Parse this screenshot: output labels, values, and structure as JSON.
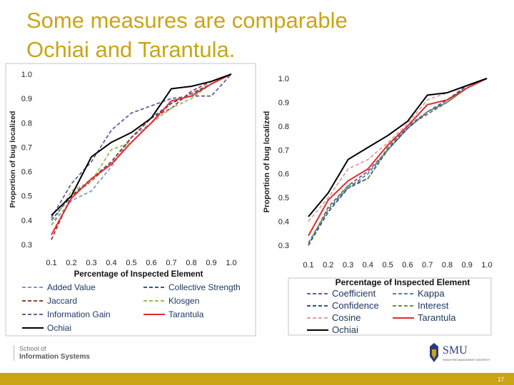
{
  "slide": {
    "title_line1": "Some measures are comparable",
    "title_line2": "Ochiai and Tarantula.",
    "school_line1": "School of",
    "school_line2": "Information Systems",
    "logo_text": "SMU",
    "logo_subtext": "SINGAPORE MANAGEMENT UNIVERSITY",
    "page_number": "17",
    "accent_color": "#c9a516"
  },
  "chart_data": [
    {
      "type": "line",
      "xlabel": "Percentage of Inspected Element",
      "ylabel": "Proportion of bug localized",
      "x": [
        "0.1",
        "0.2",
        "0.3",
        "0.4",
        "0.5",
        "0.6",
        "0.7",
        "0.8",
        "0.9",
        "1.0"
      ],
      "yticks": [
        "0.3",
        "0.4",
        "0.5",
        "0.6",
        "0.7",
        "0.8",
        "0.9",
        "1.0"
      ],
      "ylim": [
        0.3,
        1.0
      ],
      "grid": false,
      "legend_position": "bottom",
      "series": [
        {
          "name": "Added Value",
          "color": "#7f9cc8",
          "dash": "dash",
          "values": [
            0.38,
            0.48,
            0.52,
            0.62,
            0.74,
            0.8,
            0.88,
            0.92,
            0.96,
            1.0
          ]
        },
        {
          "name": "Collective Strength",
          "color": "#2f5597",
          "dash": "dash",
          "values": [
            0.4,
            0.5,
            0.57,
            0.64,
            0.74,
            0.82,
            0.88,
            0.92,
            0.96,
            1.0
          ]
        },
        {
          "name": "Jaccard",
          "color": "#9e3a3a",
          "dash": "dash",
          "values": [
            0.32,
            0.5,
            0.56,
            0.64,
            0.74,
            0.82,
            0.86,
            0.93,
            0.97,
            1.0
          ]
        },
        {
          "name": "Klosgen",
          "color": "#9bbb59",
          "dash": "dash",
          "values": [
            0.38,
            0.52,
            0.56,
            0.69,
            0.72,
            0.8,
            0.86,
            0.9,
            0.96,
            1.0
          ]
        },
        {
          "name": "Information Gain",
          "color": "#6a5aa0",
          "dash": "dash",
          "values": [
            0.41,
            0.55,
            0.64,
            0.77,
            0.84,
            0.87,
            0.9,
            0.91,
            0.91,
            1.0
          ]
        },
        {
          "name": "Tarantula",
          "color": "#e52a2a",
          "dash": "solid",
          "values": [
            0.34,
            0.49,
            0.57,
            0.63,
            0.72,
            0.8,
            0.89,
            0.91,
            0.96,
            1.0
          ]
        },
        {
          "name": "Ochiai",
          "color": "#000000",
          "dash": "solid",
          "values": [
            0.42,
            0.5,
            0.66,
            0.72,
            0.76,
            0.82,
            0.94,
            0.95,
            0.97,
            1.0
          ]
        }
      ]
    },
    {
      "type": "line",
      "xlabel": "Percentage of Inspected Element",
      "ylabel": "Proportion of bug localized",
      "x": [
        "0.1",
        "0.2",
        "0.3",
        "0.4",
        "0.5",
        "0.6",
        "0.7",
        "0.8",
        "0.9",
        "1.0"
      ],
      "yticks": [
        "0.3",
        "0.4",
        "0.5",
        "0.6",
        "0.7",
        "0.8",
        "0.9",
        "1.0"
      ],
      "ylim": [
        0.3,
        1.0
      ],
      "grid": false,
      "legend_position": "bottom",
      "series": [
        {
          "name": "Coefficient",
          "color": "#6a5aa0",
          "dash": "dash",
          "values": [
            0.3,
            0.46,
            0.55,
            0.61,
            0.7,
            0.8,
            0.85,
            0.9,
            0.96,
            1.0
          ]
        },
        {
          "name": "Kappa",
          "color": "#5b7fb0",
          "dash": "dash",
          "values": [
            0.31,
            0.45,
            0.54,
            0.6,
            0.7,
            0.79,
            0.86,
            0.9,
            0.96,
            1.0
          ]
        },
        {
          "name": "Confidence",
          "color": "#2f5597",
          "dash": "dash",
          "values": [
            0.3,
            0.44,
            0.54,
            0.58,
            0.7,
            0.79,
            0.86,
            0.91,
            0.97,
            1.0
          ]
        },
        {
          "name": "Interest",
          "color": "#6f8f3a",
          "dash": "dash",
          "values": [
            0.31,
            0.45,
            0.55,
            0.58,
            0.71,
            0.8,
            0.86,
            0.9,
            0.96,
            1.0
          ]
        },
        {
          "name": "Cosine",
          "color": "#d7a2a2",
          "dash": "dash",
          "values": [
            0.4,
            0.5,
            0.62,
            0.66,
            0.73,
            0.81,
            0.91,
            0.94,
            0.97,
            1.0
          ]
        },
        {
          "name": "Tarantula",
          "color": "#e52a2a",
          "dash": "solid",
          "values": [
            0.34,
            0.49,
            0.57,
            0.62,
            0.72,
            0.8,
            0.89,
            0.91,
            0.96,
            1.0
          ]
        },
        {
          "name": "Ochiai",
          "color": "#000000",
          "dash": "solid",
          "values": [
            0.42,
            0.52,
            0.66,
            0.71,
            0.76,
            0.82,
            0.93,
            0.94,
            0.97,
            1.0
          ]
        }
      ]
    }
  ]
}
